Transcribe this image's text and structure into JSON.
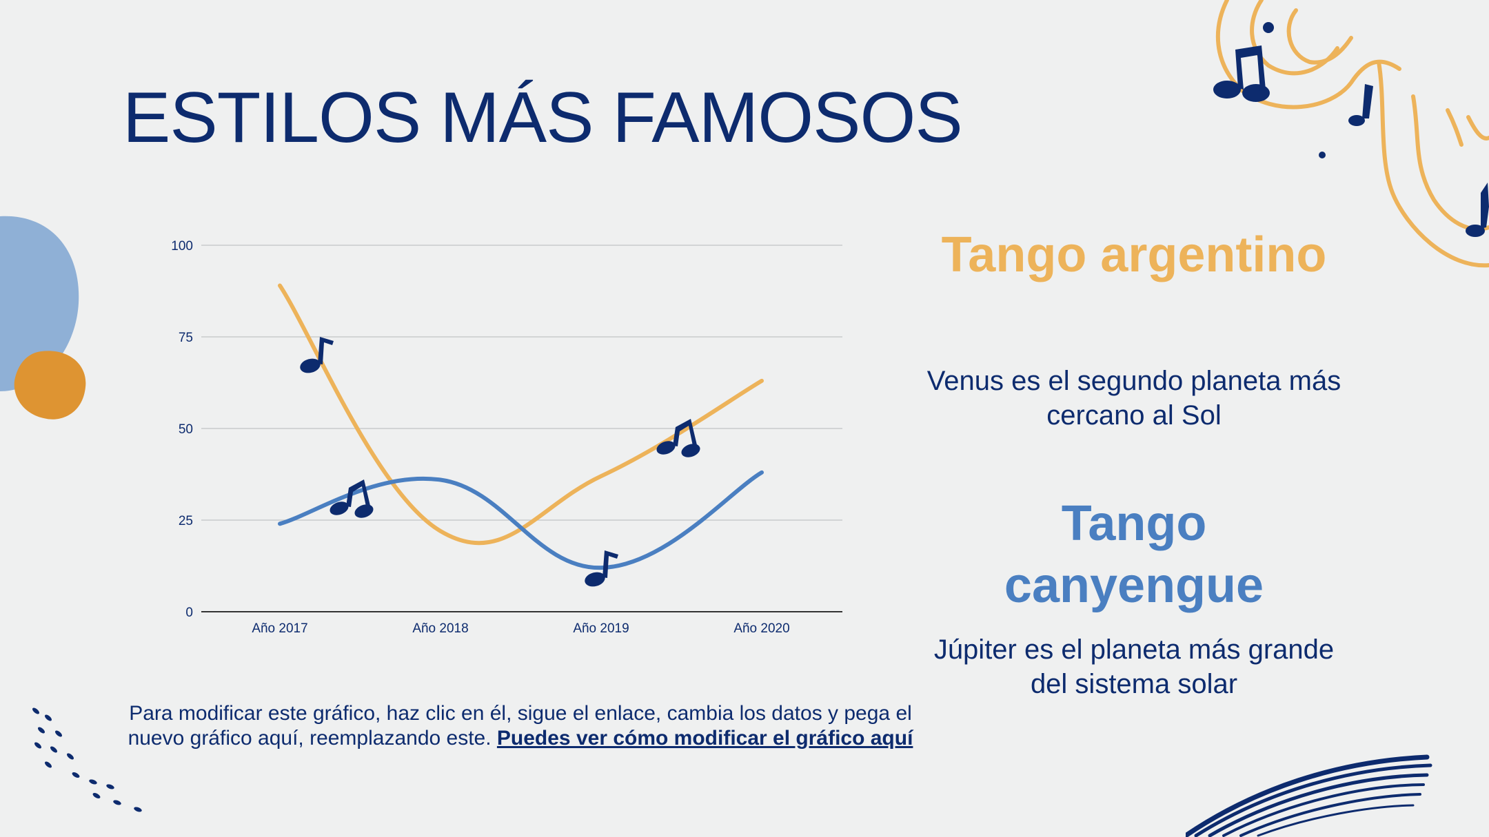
{
  "slide": {
    "title": "ESTILOS MÁS FAMOSOS",
    "caption_text": "Para modificar este gráfico, haz clic en él, sigue el enlace, cambia los datos y pega el nuevo gráfico aquí, reemplazando este. ",
    "caption_link": "Puedes ver cómo modificar el gráfico aquí"
  },
  "styles": [
    {
      "name": "Tango argentino",
      "description": "Venus es el segundo planeta más cercano al Sol",
      "color": "#edb35a"
    },
    {
      "name": "Tango canyengue",
      "description": "Júpiter es el planeta más grande del sistema solar",
      "color": "#4a7fc1"
    }
  ],
  "colors": {
    "navy": "#0d2b6e",
    "orange": "#edb35a",
    "blue": "#4a7fc1",
    "light_blue": "#8fb0d6",
    "dark_orange": "#de9432"
  },
  "chart_data": {
    "type": "line",
    "categories": [
      "Año 2017",
      "Año 2018",
      "Año 2019",
      "Año 2020"
    ],
    "series": [
      {
        "name": "",
        "color": "#edb35a",
        "values": [
          89,
          22,
          37,
          63
        ]
      },
      {
        "name": "",
        "color": "#4a7fc1",
        "values": [
          24,
          36,
          12,
          38
        ]
      }
    ],
    "yticks": [
      0,
      25,
      50,
      75,
      100
    ],
    "ylim": [
      0,
      100
    ],
    "title": "",
    "xlabel": "",
    "ylabel": "",
    "grid": true,
    "legend": "none"
  }
}
